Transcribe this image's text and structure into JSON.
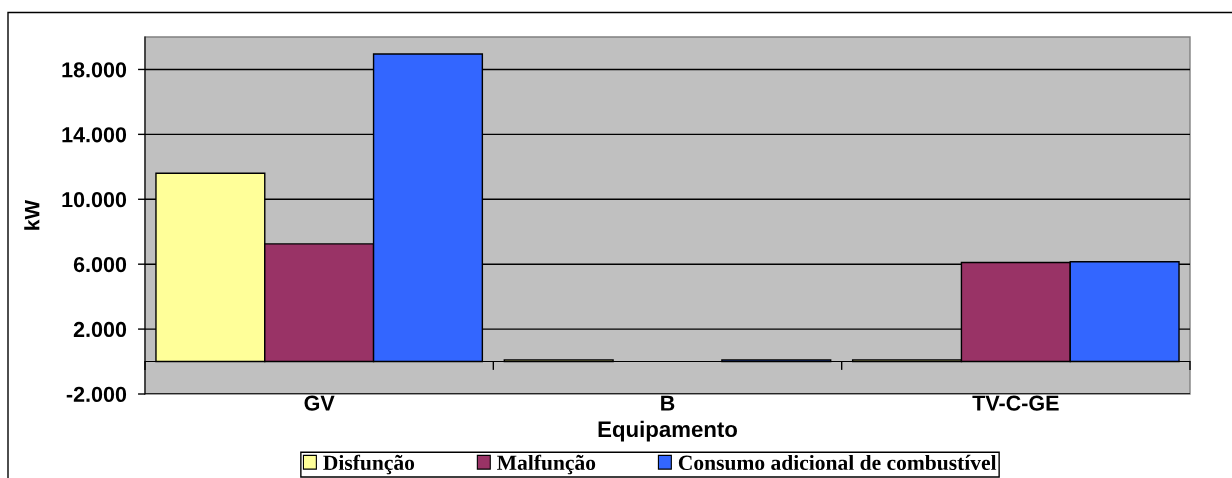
{
  "chart_data": {
    "type": "bar",
    "xlabel": "Equipamento",
    "ylabel": "kW",
    "categories": [
      "GV",
      "B",
      "TV-C-GE"
    ],
    "series": [
      {
        "name": "Disfunção",
        "color": "#ffff99",
        "values": [
          11600,
          100,
          100
        ]
      },
      {
        "name": "Malfunção",
        "color": "#993366",
        "values": [
          7250,
          null,
          6100
        ]
      },
      {
        "name": "Consumo adicional de combustível",
        "color": "#3366ff",
        "values": [
          18950,
          100,
          6150
        ]
      }
    ],
    "ylim": [
      -2000,
      20000
    ],
    "yticks": [
      {
        "value": -2000,
        "label": "-2.000"
      },
      {
        "value": 2000,
        "label": "2.000"
      },
      {
        "value": 6000,
        "label": "6.000"
      },
      {
        "value": 10000,
        "label": "10.000"
      },
      {
        "value": 14000,
        "label": "14.000"
      },
      {
        "value": 18000,
        "label": "18.000"
      }
    ],
    "grid": "y",
    "legend": "bottom"
  }
}
